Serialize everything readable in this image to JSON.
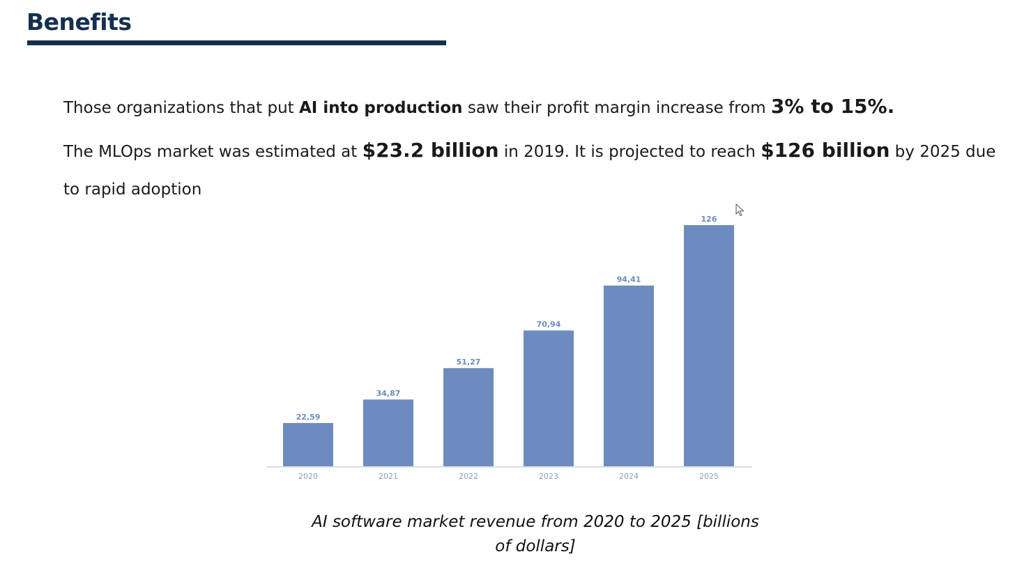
{
  "slide": {
    "title": "Benefits"
  },
  "paragraph1": {
    "t1": "Those organizations that put ",
    "b1": "AI into production",
    "t2": " saw their profit margin increase from ",
    "big1": "3% to 15%."
  },
  "paragraph2": {
    "t1": "The MLOps market was estimated at ",
    "big1": "$23.2 billion",
    "t2": " in 2019. It is projected to reach ",
    "big2": "$126 billion",
    "t3": " by 2025 due",
    "t4": "to rapid adoption"
  },
  "chart_data": {
    "type": "bar",
    "categories": [
      "2020",
      "2021",
      "2022",
      "2023",
      "2024",
      "2025"
    ],
    "values": [
      22.59,
      34.87,
      51.27,
      70.94,
      94.41,
      126
    ],
    "data_labels": [
      "22,59",
      "34,87",
      "51,27",
      "70,94",
      "94,41",
      "126"
    ],
    "ylim": [
      0,
      126
    ],
    "grid": false,
    "bar_color": "#6d8bbf",
    "label_color": "#6d8bbf"
  },
  "caption": {
    "line1": "AI software market revenue from 2020 to 2025 [billions",
    "line2": "of dollars]"
  },
  "colors": {
    "title": "#14304f",
    "accent_rule": "#14304f"
  },
  "icons": {
    "cursor": "mouse-pointer-icon"
  }
}
